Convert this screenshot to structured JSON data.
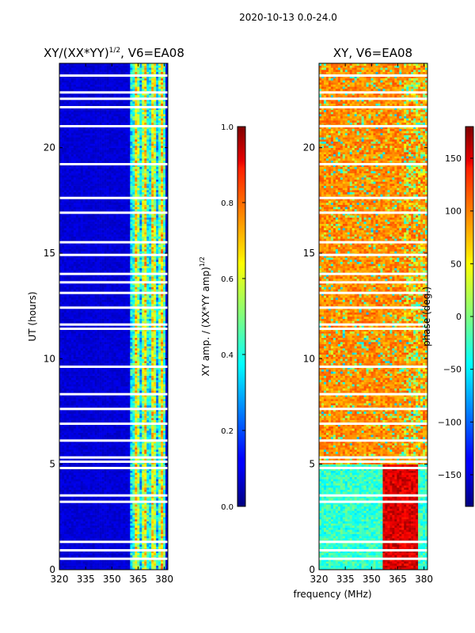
{
  "figure": {
    "suptitle": "2020-10-13 0.0-24.0"
  },
  "chart_data": [
    {
      "type": "heatmap",
      "title": "XY/(XX*YY)^{1/2}, V6=EA08",
      "title_main": "XY/(XX*YY)",
      "title_sup": "1/2",
      "title_tail": ", V6=EA08",
      "xlabel": "",
      "ylabel": "UT (hours)",
      "xlim": [
        320,
        382
      ],
      "ylim": [
        0,
        24
      ],
      "xticks": [
        320,
        335,
        350,
        365,
        380
      ],
      "yticks": [
        0,
        5,
        10,
        15,
        20
      ],
      "xtick_labels": [
        "320",
        "335",
        "350",
        "365",
        "380"
      ],
      "ytick_labels": [
        "0",
        "5",
        "10",
        "15",
        "20"
      ],
      "colormap": "jet",
      "value_range": [
        0.0,
        1.0
      ],
      "description_bands": [
        {
          "x_from": 320,
          "x_to": 360,
          "value": 0.08
        },
        {
          "x_from": 360,
          "x_to": 381,
          "value": 0.45
        }
      ],
      "colorbar": {
        "label": "XY amp. / (XX*YY amp)^{1/2}",
        "label_main": "XY amp. / (XX*YY amp)",
        "label_sup": "1/2",
        "ticks": [
          0.0,
          0.2,
          0.4,
          0.6,
          0.8,
          1.0
        ],
        "tick_labels": [
          "0.0",
          "0.2",
          "0.4",
          "0.6",
          "0.8",
          "1.0"
        ]
      }
    },
    {
      "type": "heatmap",
      "title": "XY, V6=EA08",
      "xlabel": "frequency (MHz)",
      "ylabel": "",
      "xlim": [
        320,
        382
      ],
      "ylim": [
        0,
        24
      ],
      "xticks": [
        320,
        335,
        350,
        365,
        380
      ],
      "yticks": [
        0,
        5,
        10,
        15,
        20
      ],
      "xtick_labels": [
        "320",
        "335",
        "350",
        "365",
        "380"
      ],
      "ytick_labels": [
        "0",
        "5",
        "10",
        "15",
        "20"
      ],
      "colormap": "jet",
      "value_range": [
        -180,
        180
      ],
      "colorbar": {
        "label": "phase (deg.)",
        "ticks": [
          -150,
          -100,
          -50,
          0,
          50,
          100,
          150
        ],
        "tick_labels": [
          "−150",
          "−100",
          "−50",
          "0",
          "50",
          "100",
          "150"
        ]
      }
    }
  ]
}
